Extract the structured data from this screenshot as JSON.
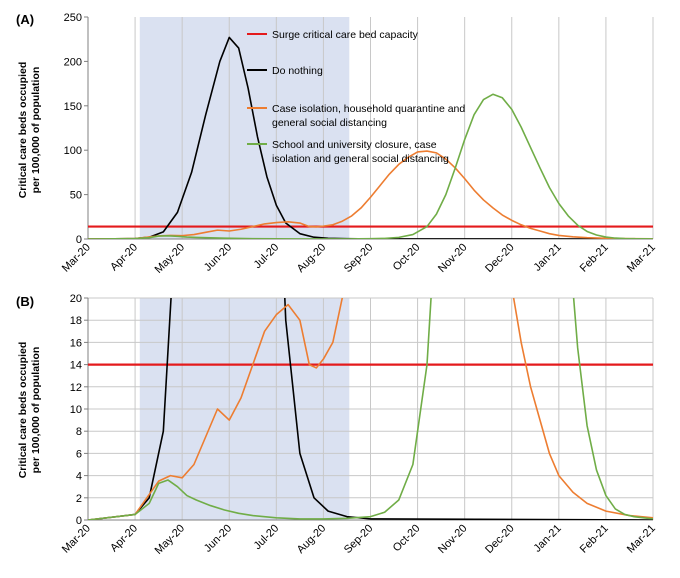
{
  "chart_data": [
    {
      "panel_label": "(A)",
      "type": "line",
      "ylabel_line1": "Critical care beds occupied",
      "ylabel_line2": "per 100,000 of population",
      "ylim": [
        0,
        250
      ],
      "yticks": [
        "0",
        "50",
        "100",
        "150",
        "200",
        "250"
      ],
      "ytick_values": [
        0,
        50,
        100,
        150,
        200,
        250
      ],
      "x_tick_labels": [
        "Mar-20",
        "Apr-20",
        "May-20",
        "Jun-20",
        "Jul-20",
        "Aug-20",
        "Sep-20",
        "Oct-20",
        "Nov-20",
        "Dec-20",
        "Jan-21",
        "Feb-21",
        "Mar-21"
      ],
      "x_unit": "months since Mar-20",
      "shaded_region": {
        "start": 1.1,
        "end": 5.55,
        "color": "#d6def0"
      },
      "grid": "vertical",
      "legend_entries": [
        {
          "label": "Surge critical care bed capacity",
          "color": "#e41a1c",
          "lines": [
            "Surge critical care bed capacity"
          ]
        },
        {
          "label": "Do nothing",
          "color": "#000000",
          "lines": [
            "Do nothing"
          ]
        },
        {
          "label": "Case isolation, household quarantine and general social distancing",
          "color": "#ed7d31",
          "lines": [
            "Case isolation, household quarantine and",
            "general social distancing"
          ]
        },
        {
          "label": "School and university closure, case isolation and general social distancing",
          "color": "#70ad47",
          "lines": [
            "School and university closure, case",
            "isolation and general social distancing"
          ]
        }
      ],
      "series": [
        {
          "name": "Surge critical care bed capacity",
          "color": "#e41a1c",
          "x": [
            0,
            12
          ],
          "y": [
            14,
            14
          ]
        },
        {
          "name": "Do nothing",
          "color": "#000000",
          "x": [
            0,
            1.0,
            1.3,
            1.6,
            1.9,
            2.2,
            2.5,
            2.8,
            3.0,
            3.2,
            3.4,
            3.6,
            3.8,
            4.0,
            4.2,
            4.5,
            4.8,
            5.1,
            5.5,
            6.0,
            12
          ],
          "y": [
            0,
            0.5,
            2,
            8,
            30,
            75,
            140,
            200,
            227,
            215,
            170,
            115,
            70,
            38,
            18,
            6,
            2,
            0.8,
            0.3,
            0.1,
            0
          ]
        },
        {
          "name": "Case isolation, household quarantine and general social distancing",
          "color": "#ed7d31",
          "x": [
            0,
            1.0,
            1.5,
            1.75,
            2.0,
            2.25,
            2.5,
            2.75,
            3.0,
            3.25,
            3.5,
            3.75,
            4.0,
            4.25,
            4.5,
            4.7,
            4.85,
            5.0,
            5.2,
            5.4,
            5.6,
            5.8,
            6.0,
            6.2,
            6.4,
            6.6,
            6.8,
            7.0,
            7.2,
            7.4,
            7.6,
            7.8,
            8.0,
            8.2,
            8.4,
            8.6,
            8.8,
            9.0,
            9.2,
            9.4,
            9.6,
            9.8,
            10.0,
            10.3,
            10.6,
            11.0,
            11.5,
            12
          ],
          "y": [
            0,
            0.5,
            3.5,
            4,
            3.8,
            5,
            7.5,
            10,
            9,
            11,
            14,
            17,
            18.5,
            19.4,
            18,
            14,
            13.7,
            14.5,
            16,
            20,
            26,
            35,
            47,
            60,
            73,
            84,
            92,
            98,
            99,
            97,
            90,
            80,
            68,
            55,
            44,
            35,
            27,
            21,
            16,
            12,
            9,
            6,
            4,
            2.5,
            1.5,
            0.8,
            0.4,
            0.2
          ]
        },
        {
          "name": "School and university closure, case isolation and general social distancing",
          "color": "#70ad47",
          "x": [
            0,
            1.0,
            1.3,
            1.5,
            1.7,
            1.9,
            2.1,
            2.3,
            2.6,
            2.9,
            3.2,
            3.5,
            4.0,
            4.5,
            5.0,
            5.5,
            6.0,
            6.3,
            6.6,
            6.9,
            7.2,
            7.4,
            7.6,
            7.8,
            8.0,
            8.2,
            8.4,
            8.6,
            8.8,
            9.0,
            9.2,
            9.4,
            9.6,
            9.8,
            10.0,
            10.2,
            10.4,
            10.6,
            10.8,
            11.0,
            11.2,
            11.4,
            11.6,
            11.8,
            12
          ],
          "y": [
            0,
            0.5,
            1.5,
            3.3,
            3.6,
            3.0,
            2.2,
            1.8,
            1.3,
            0.9,
            0.6,
            0.4,
            0.2,
            0.1,
            0.1,
            0.15,
            0.3,
            0.7,
            1.8,
            5,
            14,
            28,
            50,
            80,
            112,
            140,
            157,
            163,
            159,
            146,
            126,
            103,
            80,
            58,
            40,
            26,
            15.5,
            8.5,
            4.5,
            2.2,
            1.0,
            0.5,
            0.3,
            0.2,
            0.1
          ]
        }
      ]
    },
    {
      "panel_label": "(B)",
      "type": "line",
      "ylabel_line1": "Critical care beds occupied",
      "ylabel_line2": "per 100,000 of population",
      "ylim": [
        0,
        20
      ],
      "yticks": [
        "0",
        "2",
        "4",
        "6",
        "8",
        "10",
        "12",
        "14",
        "16",
        "18",
        "20"
      ],
      "ytick_values": [
        0,
        2,
        4,
        6,
        8,
        10,
        12,
        14,
        16,
        18,
        20
      ],
      "x_tick_labels": [
        "Mar-20",
        "Apr-20",
        "May-20",
        "Jun-20",
        "Jul-20",
        "Aug-20",
        "Sep-20",
        "Oct-20",
        "Nov-20",
        "Dec-20",
        "Jan-21",
        "Feb-21",
        "Mar-21"
      ],
      "x_unit": "months since Mar-20",
      "shaded_region": {
        "start": 1.1,
        "end": 5.55,
        "color": "#d6def0"
      },
      "grid": "both",
      "series": "same as panel (A), y-axis zoomed to 0-20"
    }
  ]
}
